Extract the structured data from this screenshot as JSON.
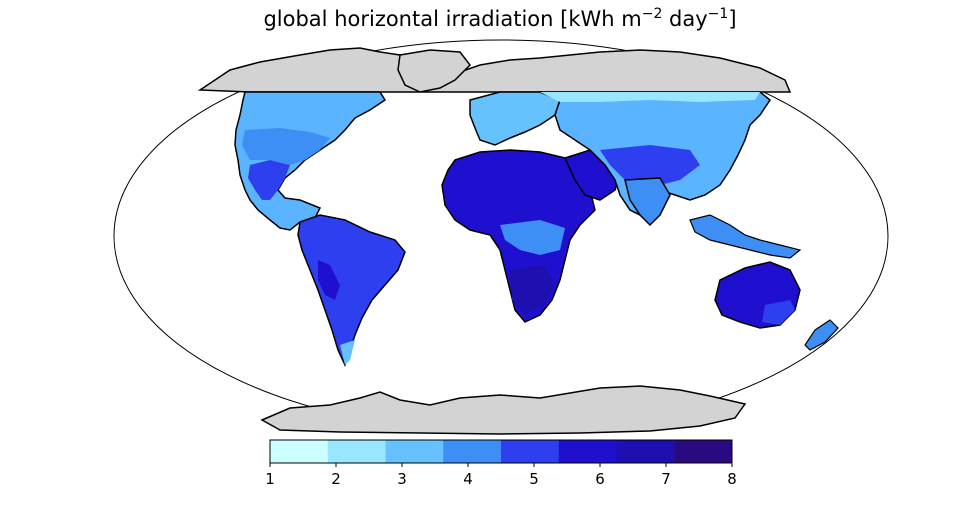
{
  "title": {
    "main": "global horizontal irradiation [kWh m",
    "exp1": "−2",
    "mid": " day",
    "exp2": "−1",
    "end": "]"
  },
  "colorbar": {
    "ticks": [
      "1",
      "2",
      "3",
      "4",
      "5",
      "6",
      "7",
      "8"
    ],
    "bin_colors": [
      "#ccffff",
      "#99e6ff",
      "#66c2ff",
      "#3d8ff5",
      "#2e3ff0",
      "#1f10d0",
      "#1e0fb0",
      "#2a0a80"
    ]
  },
  "map": {
    "projection": "robinson",
    "colors": {
      "land_nodata": "#d3d3d3",
      "coast": "#000000",
      "ocean": "#ffffff"
    }
  }
}
